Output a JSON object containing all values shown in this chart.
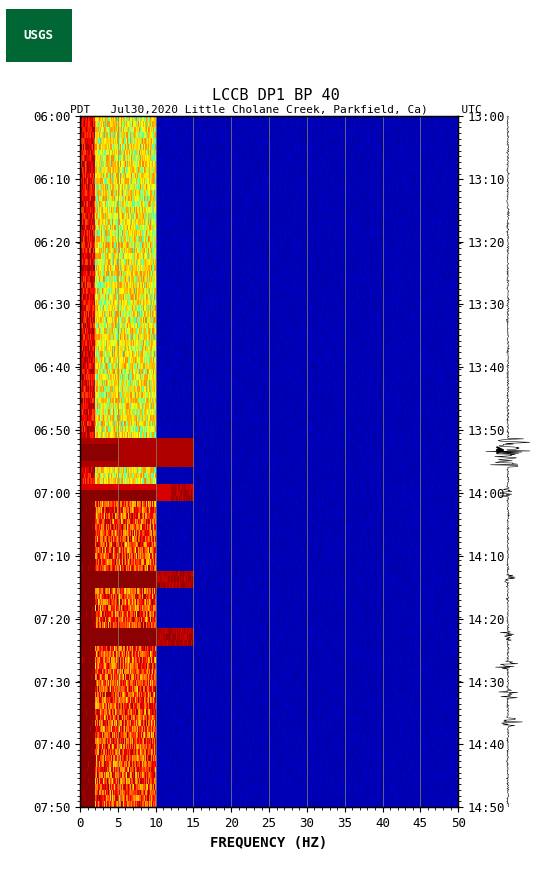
{
  "title_line1": "LCCB DP1 BP 40",
  "title_line2": "PDT   Jul30,2020 Little Cholane Creek, Parkfield, Ca)     UTC",
  "xlabel": "FREQUENCY (HZ)",
  "freq_min": 0,
  "freq_max": 50,
  "freq_ticks": [
    0,
    5,
    10,
    15,
    20,
    25,
    30,
    35,
    40,
    45,
    50
  ],
  "time_labels_left": [
    "06:00",
    "06:10",
    "06:20",
    "06:30",
    "06:40",
    "06:50",
    "07:00",
    "07:10",
    "07:20",
    "07:30",
    "07:40",
    "07:50"
  ],
  "time_labels_right": [
    "13:00",
    "13:10",
    "13:20",
    "13:30",
    "13:40",
    "13:50",
    "14:00",
    "14:10",
    "14:20",
    "14:30",
    "14:40",
    "14:50"
  ],
  "n_time_steps": 120,
  "n_freq_steps": 500,
  "background_color": "#ffffff",
  "spectrogram_bg": "#000080",
  "usgs_green": "#006633",
  "grid_color": "#8B8B6B",
  "earthquake_time_idx": 58,
  "earthquake_time_idx2": 65,
  "earthquake_time_idx3": 80,
  "earthquake_time_idx4": 90
}
